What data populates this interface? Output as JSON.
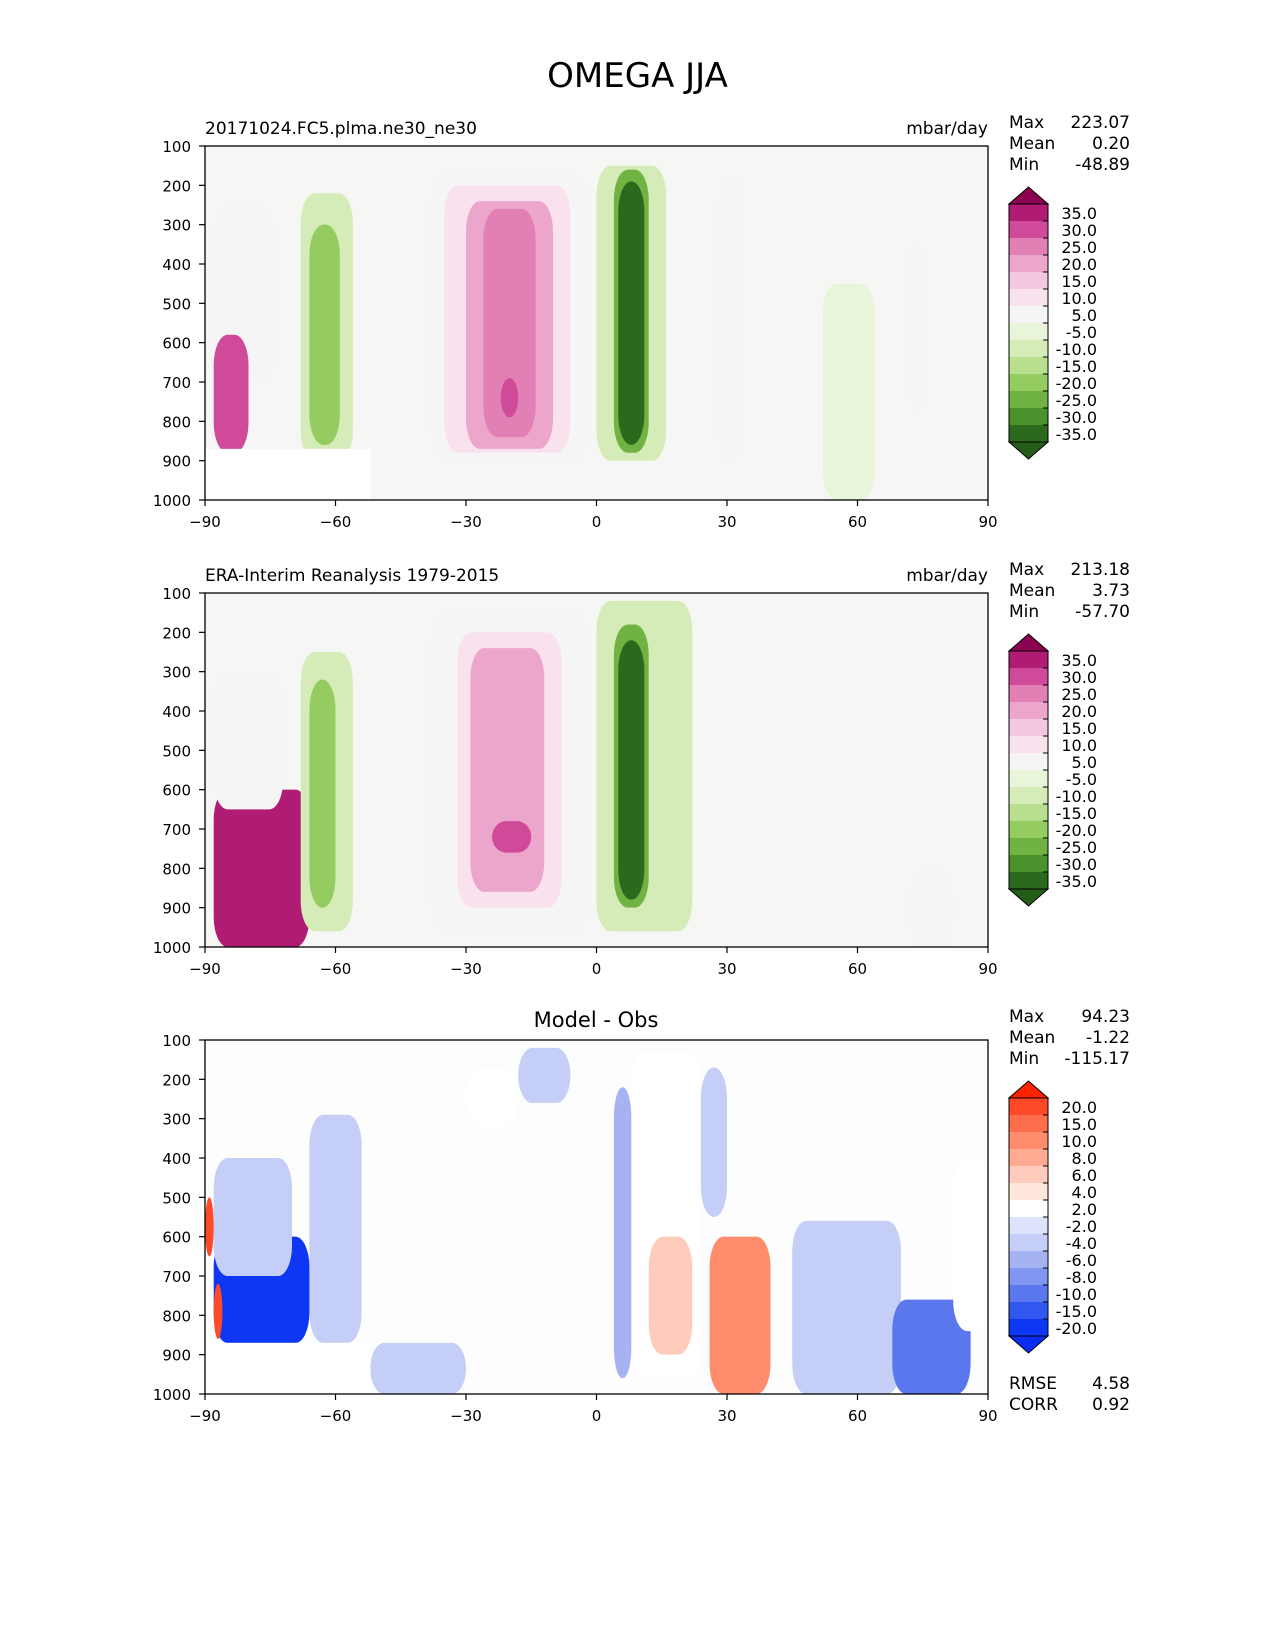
{
  "figure_title": "OMEGA JJA",
  "panels": [
    {
      "title_left": "20171024.FC5.plma.ne30_ne30",
      "title_center": "",
      "units": "mbar/day",
      "stats": [
        {
          "label": "Max",
          "value": "223.07"
        },
        {
          "label": "Mean",
          "value": "0.20"
        },
        {
          "label": "Min",
          "value": "-48.89"
        }
      ],
      "extra_stats": []
    },
    {
      "title_left": "ERA-Interim Reanalysis 1979-2015",
      "title_center": "",
      "units": "mbar/day",
      "stats": [
        {
          "label": "Max",
          "value": "213.18"
        },
        {
          "label": "Mean",
          "value": "3.73"
        },
        {
          "label": "Min",
          "value": "-57.70"
        }
      ],
      "extra_stats": []
    },
    {
      "title_left": "",
      "title_center": "Model - Obs",
      "units": "",
      "stats": [
        {
          "label": "Max",
          "value": "94.23"
        },
        {
          "label": "Mean",
          "value": "-1.22"
        },
        {
          "label": "Min",
          "value": "-115.17"
        }
      ],
      "extra_stats": [
        {
          "label": "RMSE",
          "value": "4.58"
        },
        {
          "label": "CORR",
          "value": "0.92"
        }
      ]
    }
  ],
  "colorbars": {
    "field": {
      "labels": [
        "35.0",
        "30.0",
        "25.0",
        "20.0",
        "15.0",
        "10.0",
        "5.0",
        "-5.0",
        "-10.0",
        "-15.0",
        "-20.0",
        "-25.0",
        "-30.0",
        "-35.0"
      ],
      "colors": [
        "#8c0051",
        "#b01c74",
        "#cf4a99",
        "#e27fb4",
        "#eca6cb",
        "#f4c9e0",
        "#f9e2ee",
        "#f5f5f5",
        "#e8f5d8",
        "#d5ecb8",
        "#b7df8e",
        "#94cc62",
        "#70b342",
        "#4a922b",
        "#2b6a1c",
        "#245d17"
      ]
    },
    "diff": {
      "labels": [
        "20.0",
        "15.0",
        "10.0",
        "8.0",
        "6.0",
        "4.0",
        "2.0",
        "-2.0",
        "-4.0",
        "-6.0",
        "-8.0",
        "-10.0",
        "-15.0",
        "-20.0"
      ],
      "colors": [
        "#ff2200",
        "#ff4a2a",
        "#ff6e4c",
        "#ff8c6c",
        "#ffab93",
        "#ffcbbd",
        "#ffe6dd",
        "#ffffff",
        "#dde3fb",
        "#c5cef7",
        "#a6b3f3",
        "#8196f0",
        "#5b77ee",
        "#3058f0",
        "#0d37f4",
        "#0a2cf5"
      ]
    }
  },
  "chart_data": [
    {
      "type": "contour",
      "title": "20171024.FC5.plma.ne30_ne30",
      "units": "mbar/day",
      "xlabel": "",
      "ylabel": "",
      "xlim": [
        -90,
        90
      ],
      "ylim": [
        1000,
        100
      ],
      "y_inverted": true,
      "x_ticks": [
        -90,
        -60,
        -30,
        0,
        30,
        60,
        90
      ],
      "x_tick_labels": [
        "−90",
        "−60",
        "−30",
        "0",
        "30",
        "60",
        "90"
      ],
      "y_ticks": [
        100,
        200,
        300,
        400,
        500,
        600,
        700,
        800,
        900,
        1000
      ],
      "y_tick_labels": [
        "100",
        "200",
        "300",
        "400",
        "500",
        "600",
        "700",
        "800",
        "900",
        "1000"
      ],
      "levels": [
        -35,
        -30,
        -25,
        -20,
        -15,
        -10,
        -5,
        5,
        10,
        15,
        20,
        25,
        30,
        35
      ],
      "background_value": 0,
      "features": [
        {
          "lat_range": [
            -30,
            -10
          ],
          "p_range": [
            240,
            870
          ],
          "value": 20
        },
        {
          "lat_range": [
            -26,
            -14
          ],
          "p_range": [
            260,
            840
          ],
          "value": 25
        },
        {
          "lat_range": [
            -22,
            -18
          ],
          "p_range": [
            690,
            790
          ],
          "value": 30
        },
        {
          "lat_range": [
            -38,
            -2
          ],
          "p_range": [
            170,
            900
          ],
          "value": 5
        },
        {
          "lat_range": [
            -35,
            -6
          ],
          "p_range": [
            200,
            880
          ],
          "value": 10
        },
        {
          "lat_range": [
            4,
            12
          ],
          "p_range": [
            160,
            880
          ],
          "value": -25
        },
        {
          "lat_range": [
            5,
            11
          ],
          "p_range": [
            190,
            860
          ],
          "value": -35
        },
        {
          "lat_range": [
            0,
            16
          ],
          "p_range": [
            150,
            900
          ],
          "value": -10
        },
        {
          "lat_range": [
            -68,
            -56
          ],
          "p_range": [
            220,
            900
          ],
          "value": -10
        },
        {
          "lat_range": [
            -66,
            -59
          ],
          "p_range": [
            300,
            860
          ],
          "value": -20
        },
        {
          "lat_range": [
            -88,
            -80
          ],
          "p_range": [
            580,
            880
          ],
          "value": 30
        },
        {
          "lat_range": [
            -88,
            -74
          ],
          "p_range": [
            250,
            700
          ],
          "value": 5
        },
        {
          "lat_range": [
            28,
            34
          ],
          "p_range": [
            180,
            900
          ],
          "value": 5
        },
        {
          "lat_range": [
            52,
            64
          ],
          "p_range": [
            450,
            1000
          ],
          "value": -5
        },
        {
          "lat_range": [
            72,
            75
          ],
          "p_range": [
            340,
            780
          ],
          "value": 5
        }
      ],
      "missing_region": {
        "lat_range": [
          -90,
          -52
        ],
        "p_range": [
          870,
          1000
        ]
      },
      "stats": {
        "max": 223.07,
        "mean": 0.2,
        "min": -48.89
      }
    },
    {
      "type": "contour",
      "title": "ERA-Interim Reanalysis 1979-2015",
      "units": "mbar/day",
      "xlim": [
        -90,
        90
      ],
      "ylim": [
        1000,
        100
      ],
      "y_inverted": true,
      "x_ticks": [
        -90,
        -60,
        -30,
        0,
        30,
        60,
        90
      ],
      "x_tick_labels": [
        "−90",
        "−60",
        "−30",
        "0",
        "30",
        "60",
        "90"
      ],
      "y_ticks": [
        100,
        200,
        300,
        400,
        500,
        600,
        700,
        800,
        900,
        1000
      ],
      "y_tick_labels": [
        "100",
        "200",
        "300",
        "400",
        "500",
        "600",
        "700",
        "800",
        "900",
        "1000"
      ],
      "levels": [
        -35,
        -30,
        -25,
        -20,
        -15,
        -10,
        -5,
        5,
        10,
        15,
        20,
        25,
        30,
        35
      ],
      "background_value": 0,
      "features": [
        {
          "lat_range": [
            -32,
            -8
          ],
          "p_range": [
            200,
            900
          ],
          "value": 10
        },
        {
          "lat_range": [
            -29,
            -12
          ],
          "p_range": [
            240,
            860
          ],
          "value": 20
        },
        {
          "lat_range": [
            -24,
            -15
          ],
          "p_range": [
            680,
            760
          ],
          "value": 30
        },
        {
          "lat_range": [
            -38,
            -2
          ],
          "p_range": [
            150,
            960
          ],
          "value": 5
        },
        {
          "lat_range": [
            4,
            12
          ],
          "p_range": [
            180,
            900
          ],
          "value": -25
        },
        {
          "lat_range": [
            5,
            11
          ],
          "p_range": [
            220,
            880
          ],
          "value": -35
        },
        {
          "lat_range": [
            0,
            22
          ],
          "p_range": [
            120,
            960
          ],
          "value": -10
        },
        {
          "lat_range": [
            -68,
            -56
          ],
          "p_range": [
            250,
            960
          ],
          "value": -10
        },
        {
          "lat_range": [
            -66,
            -60
          ],
          "p_range": [
            320,
            900
          ],
          "value": -20
        },
        {
          "lat_range": [
            -88,
            -66
          ],
          "p_range": [
            600,
            1000
          ],
          "value": 40
        },
        {
          "lat_range": [
            -88,
            -72
          ],
          "p_range": [
            300,
            650
          ],
          "value": 5
        },
        {
          "lat_range": [
            72,
            82
          ],
          "p_range": [
            800,
            1000
          ],
          "value": 5
        }
      ],
      "stats": {
        "max": 213.18,
        "mean": 3.73,
        "min": -57.7
      }
    },
    {
      "type": "contour",
      "title": "Model - Obs",
      "units": "",
      "xlim": [
        -90,
        90
      ],
      "ylim": [
        1000,
        100
      ],
      "y_inverted": true,
      "x_ticks": [
        -90,
        -60,
        -30,
        0,
        30,
        60,
        90
      ],
      "x_tick_labels": [
        "−90",
        "−60",
        "−30",
        "0",
        "30",
        "60",
        "90"
      ],
      "y_ticks": [
        100,
        200,
        300,
        400,
        500,
        600,
        700,
        800,
        900,
        1000
      ],
      "y_tick_labels": [
        "100",
        "200",
        "300",
        "400",
        "500",
        "600",
        "700",
        "800",
        "900",
        "1000"
      ],
      "levels": [
        -20,
        -15,
        -10,
        -8,
        -6,
        -4,
        -2,
        2,
        4,
        6,
        8,
        10,
        15,
        20
      ],
      "background_value": 0,
      "features": [
        {
          "lat_range": [
            -88,
            -66
          ],
          "p_range": [
            600,
            870
          ],
          "value": -20
        },
        {
          "lat_range": [
            -88,
            -70
          ],
          "p_range": [
            400,
            700
          ],
          "value": -4
        },
        {
          "lat_range": [
            -66,
            -54
          ],
          "p_range": [
            290,
            870
          ],
          "value": -3
        },
        {
          "lat_range": [
            -52,
            -30
          ],
          "p_range": [
            870,
            1000
          ],
          "value": -4
        },
        {
          "lat_range": [
            -30,
            -18
          ],
          "p_range": [
            170,
            320
          ],
          "value": 3
        },
        {
          "lat_range": [
            -18,
            -6
          ],
          "p_range": [
            120,
            260
          ],
          "value": -3
        },
        {
          "lat_range": [
            4,
            8
          ],
          "p_range": [
            220,
            960
          ],
          "value": -6
        },
        {
          "lat_range": [
            8,
            24
          ],
          "p_range": [
            130,
            960
          ],
          "value": 3
        },
        {
          "lat_range": [
            12,
            22
          ],
          "p_range": [
            600,
            900
          ],
          "value": 6
        },
        {
          "lat_range": [
            26,
            40
          ],
          "p_range": [
            600,
            1000
          ],
          "value": 10
        },
        {
          "lat_range": [
            24,
            30
          ],
          "p_range": [
            170,
            550
          ],
          "value": -4
        },
        {
          "lat_range": [
            45,
            70
          ],
          "p_range": [
            560,
            1000
          ],
          "value": -3
        },
        {
          "lat_range": [
            68,
            86
          ],
          "p_range": [
            760,
            1000
          ],
          "value": -10
        },
        {
          "lat_range": [
            82,
            90
          ],
          "p_range": [
            400,
            840
          ],
          "value": 3
        },
        {
          "lat_range": [
            -90,
            -88
          ],
          "p_range": [
            500,
            650
          ],
          "value": 20
        },
        {
          "lat_range": [
            -88,
            -86
          ],
          "p_range": [
            720,
            860
          ],
          "value": 20
        }
      ],
      "missing_region": {
        "lat_range": [
          -90,
          -52
        ],
        "p_range": [
          870,
          1000
        ]
      },
      "stats": {
        "max": 94.23,
        "mean": -1.22,
        "min": -115.17,
        "rmse": 4.58,
        "corr": 0.92
      }
    }
  ]
}
